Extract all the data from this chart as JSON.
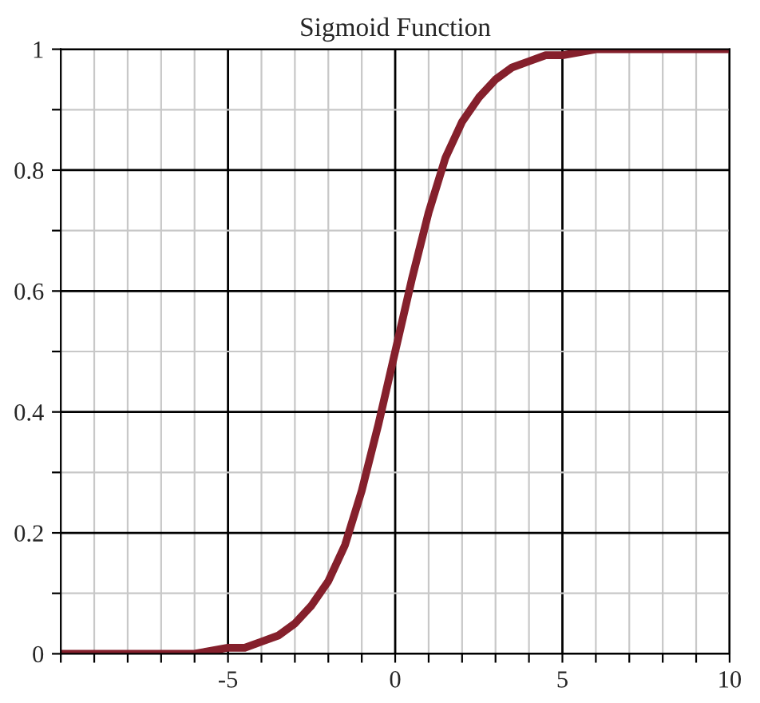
{
  "chart_data": {
    "type": "line",
    "title": "Sigmoid Function",
    "x": [
      -10,
      -9,
      -8,
      -7,
      -6,
      -5,
      -4.5,
      -4,
      -3.5,
      -3,
      -2.5,
      -2,
      -1.5,
      -1,
      -0.5,
      0,
      0.5,
      1,
      1.5,
      2,
      2.5,
      3,
      3.5,
      4,
      4.5,
      5,
      6,
      7,
      8,
      9,
      10
    ],
    "series": [
      {
        "color": "#85202c",
        "values": [
          0,
          0,
          0,
          0,
          0,
          0.01,
          0.01,
          0.02,
          0.03,
          0.05,
          0.08,
          0.12,
          0.18,
          0.27,
          0.38,
          0.5,
          0.62,
          0.73,
          0.82,
          0.88,
          0.92,
          0.95,
          0.97,
          0.98,
          0.99,
          0.99,
          1,
          1,
          1,
          1,
          1
        ]
      }
    ],
    "xlim": [
      -10,
      10
    ],
    "xticks": [
      {
        "value": -10,
        "label": null
      },
      {
        "value": -9,
        "label": null
      },
      {
        "value": -8,
        "label": null
      },
      {
        "value": -7,
        "label": null
      },
      {
        "value": -6,
        "label": null
      },
      -5,
      {
        "value": -4,
        "label": null
      },
      {
        "value": -3,
        "label": null
      },
      {
        "value": -2,
        "label": null
      },
      {
        "value": -1,
        "label": null
      },
      0,
      {
        "value": 1,
        "label": null
      },
      {
        "value": 2,
        "label": null
      },
      {
        "value": 3,
        "label": null
      },
      {
        "value": 4,
        "label": null
      },
      5,
      {
        "value": 6,
        "label": null
      },
      {
        "value": 7,
        "label": null
      },
      {
        "value": 8,
        "label": null
      },
      {
        "value": 9,
        "label": null
      },
      10
    ],
    "ylim": [
      0,
      1
    ],
    "yticks": [
      0,
      {
        "value": 0.1,
        "label": null
      },
      0.2,
      {
        "value": 0.3,
        "label": null
      },
      0.4,
      {
        "value": 0.5,
        "label": null
      },
      0.6,
      {
        "value": 0.7,
        "label": null
      },
      0.8,
      {
        "value": 0.9,
        "label": null
      },
      1
    ],
    "grid": true,
    "line_style": "solid",
    "marker": "none"
  }
}
